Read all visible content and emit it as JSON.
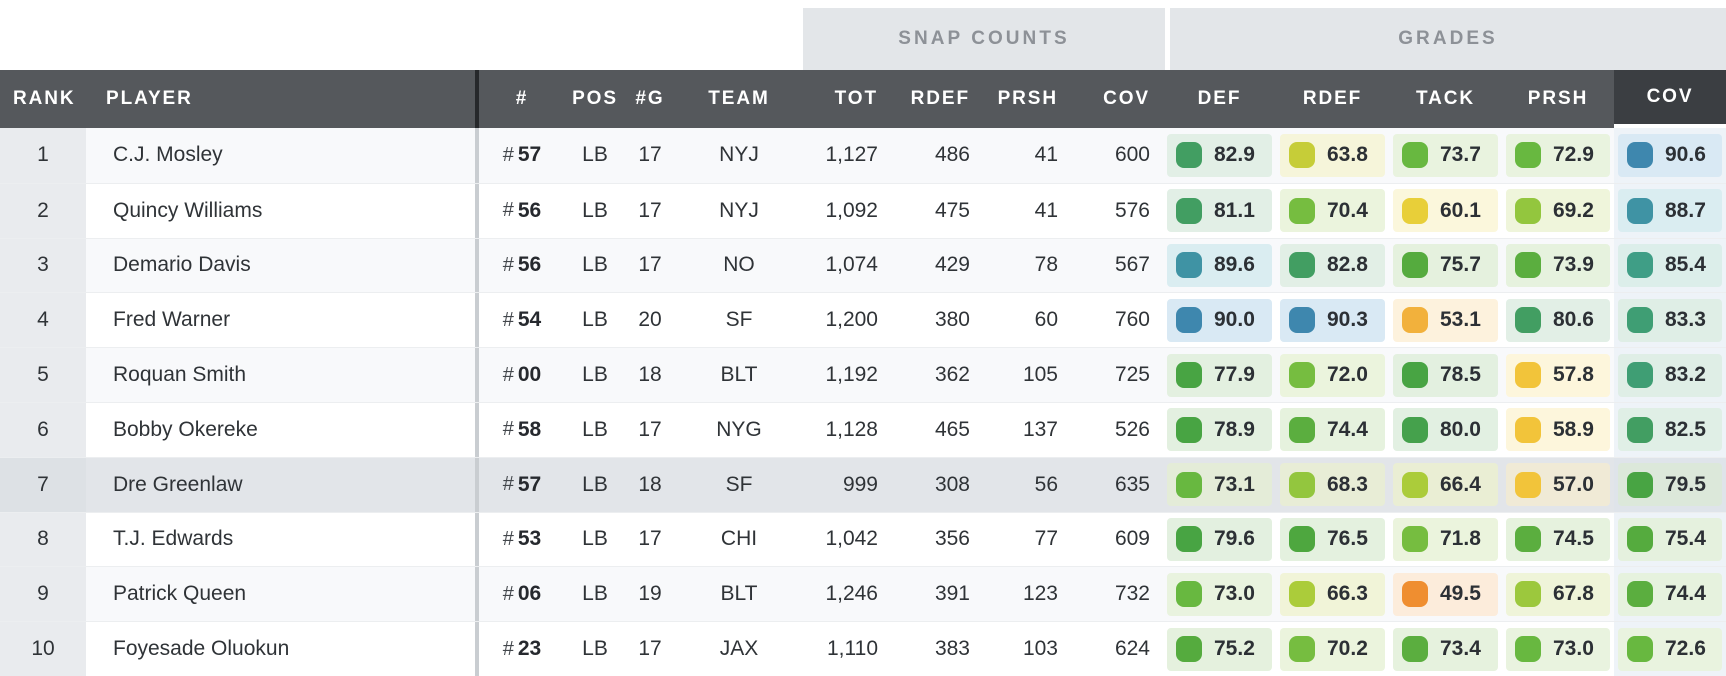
{
  "groups": {
    "snap_counts": "SNAP COUNTS",
    "grades": "GRADES"
  },
  "columns": {
    "rank": "RANK",
    "player": "PLAYER",
    "jersey": "#",
    "pos": "POS",
    "games": "#G",
    "team": "TEAM",
    "snap_tot": "TOT",
    "snap_rdef": "RDEF",
    "snap_prsh": "PRSH",
    "snap_cov": "COV",
    "gr_def": "DEF",
    "gr_rdef": "RDEF",
    "gr_tack": "TACK",
    "gr_prsh": "PRSH",
    "gr_cov": "COV"
  },
  "ui": {
    "jersey_prefix": "#",
    "sorted_group": "GRADES",
    "sorted_column": "COV"
  },
  "colors": {
    "header_bg": "#55585c",
    "header_sorted_bg": "#3b3e42",
    "header_divider": "#26282b",
    "group_bg": "#e3e6e9",
    "group_text": "#8d9197",
    "row_odd": "#f8f9fb",
    "row_even": "#ffffff",
    "row_highlight": "#e2e5e9",
    "rank_col_bg": "#e9ebee",
    "body_divider": "#c9cdd1",
    "link_navy": "#1c3c5e",
    "sorted_col_tint": "#eef3f8",
    "sort_underline": "#ffffff"
  },
  "rows": [
    {
      "rank": "1",
      "player": "C.J. Mosley",
      "jersey": "57",
      "pos": "LB",
      "games": "17",
      "team": "NYJ",
      "highlighted": false,
      "snaps": [
        "1,127",
        "486",
        "41",
        "600"
      ],
      "grades": [
        {
          "v": "82.9",
          "c": "#429e62",
          "bg": "#e2efe6"
        },
        {
          "v": "63.8",
          "c": "#c6cd38",
          "bg": "#f6f5da"
        },
        {
          "v": "73.7",
          "c": "#68b840",
          "bg": "#e9f3df"
        },
        {
          "v": "72.9",
          "c": "#68b840",
          "bg": "#e9f3df"
        },
        {
          "v": "90.6",
          "c": "#3e87ae",
          "bg": "#d9e9f4"
        }
      ]
    },
    {
      "rank": "2",
      "player": "Quincy Williams",
      "jersey": "56",
      "pos": "LB",
      "games": "17",
      "team": "NYJ",
      "highlighted": false,
      "snaps": [
        "1,092",
        "475",
        "41",
        "576"
      ],
      "grades": [
        {
          "v": "81.1",
          "c": "#429e62",
          "bg": "#e2efe6"
        },
        {
          "v": "70.4",
          "c": "#76bd40",
          "bg": "#ebf4dd"
        },
        {
          "v": "60.1",
          "c": "#e8cf39",
          "bg": "#fbf7dc"
        },
        {
          "v": "69.2",
          "c": "#93c63e",
          "bg": "#eff5db"
        },
        {
          "v": "88.7",
          "c": "#3f93a4",
          "bg": "#daedf1"
        }
      ]
    },
    {
      "rank": "3",
      "player": "Demario Davis",
      "jersey": "56",
      "pos": "LB",
      "games": "17",
      "team": "NO",
      "highlighted": false,
      "snaps": [
        "1,074",
        "429",
        "78",
        "567"
      ],
      "grades": [
        {
          "v": "89.6",
          "c": "#3f93a4",
          "bg": "#daedf1"
        },
        {
          "v": "82.8",
          "c": "#429e62",
          "bg": "#e2efe6"
        },
        {
          "v": "75.7",
          "c": "#55ab3e",
          "bg": "#e5f1de"
        },
        {
          "v": "73.9",
          "c": "#5bae3f",
          "bg": "#e6f2de"
        },
        {
          "v": "85.4",
          "c": "#3f9e86",
          "bg": "#dceeea"
        }
      ]
    },
    {
      "rank": "4",
      "player": "Fred Warner",
      "jersey": "54",
      "pos": "LB",
      "games": "20",
      "team": "SF",
      "highlighted": false,
      "snaps": [
        "1,200",
        "380",
        "60",
        "760"
      ],
      "grades": [
        {
          "v": "90.0",
          "c": "#3e87ae",
          "bg": "#d9e9f4"
        },
        {
          "v": "90.3",
          "c": "#3e87ae",
          "bg": "#d9e9f4"
        },
        {
          "v": "53.1",
          "c": "#f2b13c",
          "bg": "#fdf2dd"
        },
        {
          "v": "80.6",
          "c": "#429e62",
          "bg": "#e2efe6"
        },
        {
          "v": "83.3",
          "c": "#3f9e74",
          "bg": "#dfeee6"
        }
      ]
    },
    {
      "rank": "5",
      "player": "Roquan Smith",
      "jersey": "00",
      "pos": "LB",
      "games": "18",
      "team": "BLT",
      "highlighted": false,
      "snaps": [
        "1,192",
        "362",
        "105",
        "725"
      ],
      "grades": [
        {
          "v": "77.9",
          "c": "#48a443",
          "bg": "#e3f0e0"
        },
        {
          "v": "72.0",
          "c": "#76bd40",
          "bg": "#ebf4dd"
        },
        {
          "v": "78.5",
          "c": "#48a443",
          "bg": "#e3f0e0"
        },
        {
          "v": "57.8",
          "c": "#f2c43a",
          "bg": "#fdf6dc"
        },
        {
          "v": "83.2",
          "c": "#3f9e74",
          "bg": "#dfeee6"
        }
      ]
    },
    {
      "rank": "6",
      "player": "Bobby Okereke",
      "jersey": "58",
      "pos": "LB",
      "games": "17",
      "team": "NYG",
      "highlighted": false,
      "snaps": [
        "1,128",
        "465",
        "137",
        "526"
      ],
      "grades": [
        {
          "v": "78.9",
          "c": "#48a443",
          "bg": "#e3f0e0"
        },
        {
          "v": "74.4",
          "c": "#5bae3f",
          "bg": "#e6f2de"
        },
        {
          "v": "80.0",
          "c": "#45a14c",
          "bg": "#e2f0e2"
        },
        {
          "v": "58.9",
          "c": "#f2c43a",
          "bg": "#fdf6dc"
        },
        {
          "v": "82.5",
          "c": "#429e62",
          "bg": "#e0efe6"
        }
      ]
    },
    {
      "rank": "7",
      "player": "Dre Greenlaw",
      "jersey": "57",
      "pos": "LB",
      "games": "18",
      "team": "SF",
      "highlighted": true,
      "snaps": [
        "999",
        "308",
        "56",
        "635"
      ],
      "grades": [
        {
          "v": "73.1",
          "c": "#68b840",
          "bg": "#e4ecd8"
        },
        {
          "v": "68.3",
          "c": "#93c63e",
          "bg": "#e8edd6"
        },
        {
          "v": "66.4",
          "c": "#abcc3a",
          "bg": "#eaeed4"
        },
        {
          "v": "57.0",
          "c": "#f2c43a",
          "bg": "#f0ead6"
        },
        {
          "v": "79.5",
          "c": "#48a443",
          "bg": "#dce8da"
        }
      ]
    },
    {
      "rank": "8",
      "player": "T.J. Edwards",
      "jersey": "53",
      "pos": "LB",
      "games": "17",
      "team": "CHI",
      "highlighted": false,
      "snaps": [
        "1,042",
        "356",
        "77",
        "609"
      ],
      "grades": [
        {
          "v": "79.6",
          "c": "#48a443",
          "bg": "#e3f0e0"
        },
        {
          "v": "76.5",
          "c": "#4ea73f",
          "bg": "#e4f1df"
        },
        {
          "v": "71.8",
          "c": "#76bd40",
          "bg": "#ebf4dd"
        },
        {
          "v": "74.5",
          "c": "#5bae3f",
          "bg": "#e6f2de"
        },
        {
          "v": "75.4",
          "c": "#55ab3e",
          "bg": "#e5f1de"
        }
      ]
    },
    {
      "rank": "9",
      "player": "Patrick Queen",
      "jersey": "06",
      "pos": "LB",
      "games": "19",
      "team": "BLT",
      "highlighted": false,
      "snaps": [
        "1,246",
        "391",
        "123",
        "732"
      ],
      "grades": [
        {
          "v": "73.0",
          "c": "#68b840",
          "bg": "#e9f3df"
        },
        {
          "v": "66.3",
          "c": "#abcc3a",
          "bg": "#f1f4d8"
        },
        {
          "v": "49.5",
          "c": "#ef8e30",
          "bg": "#fcecdb"
        },
        {
          "v": "67.8",
          "c": "#9cc83d",
          "bg": "#eff4d9"
        },
        {
          "v": "74.4",
          "c": "#5bae3f",
          "bg": "#e6f2de"
        }
      ]
    },
    {
      "rank": "10",
      "player": "Foyesade Oluokun",
      "jersey": "23",
      "pos": "LB",
      "games": "17",
      "team": "JAX",
      "highlighted": false,
      "snaps": [
        "1,110",
        "383",
        "103",
        "624"
      ],
      "grades": [
        {
          "v": "75.2",
          "c": "#55ab3e",
          "bg": "#e5f1de"
        },
        {
          "v": "70.2",
          "c": "#76bd40",
          "bg": "#ebf4dd"
        },
        {
          "v": "73.4",
          "c": "#5bae3f",
          "bg": "#e6f2de"
        },
        {
          "v": "73.0",
          "c": "#68b840",
          "bg": "#e9f3df"
        },
        {
          "v": "72.6",
          "c": "#68b840",
          "bg": "#e9f3df"
        }
      ]
    }
  ]
}
